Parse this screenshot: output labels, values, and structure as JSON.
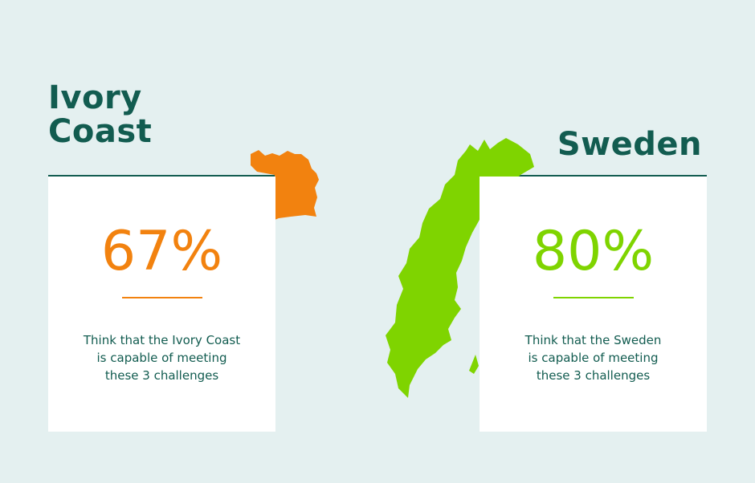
{
  "colors": {
    "background": "#e4f0f0",
    "heading": "#125c50",
    "card": "#ffffff",
    "ivory_coast_accent": "#f2820f",
    "sweden_accent": "#7fd400"
  },
  "countries": [
    {
      "name_line_1": "Ivory",
      "name_line_2": "Coast",
      "value": "67%",
      "caption": "Think that the Ivory Coast\nis capable of meeting\nthese 3 challenges",
      "accent": "#f2820f",
      "map_icon": "ivory-coast-map"
    },
    {
      "name": "Sweden",
      "value": "80%",
      "caption": "Think that the Sweden\nis capable of meeting\nthese 3 challenges",
      "accent": "#7fd400",
      "map_icon": "sweden-map"
    }
  ]
}
